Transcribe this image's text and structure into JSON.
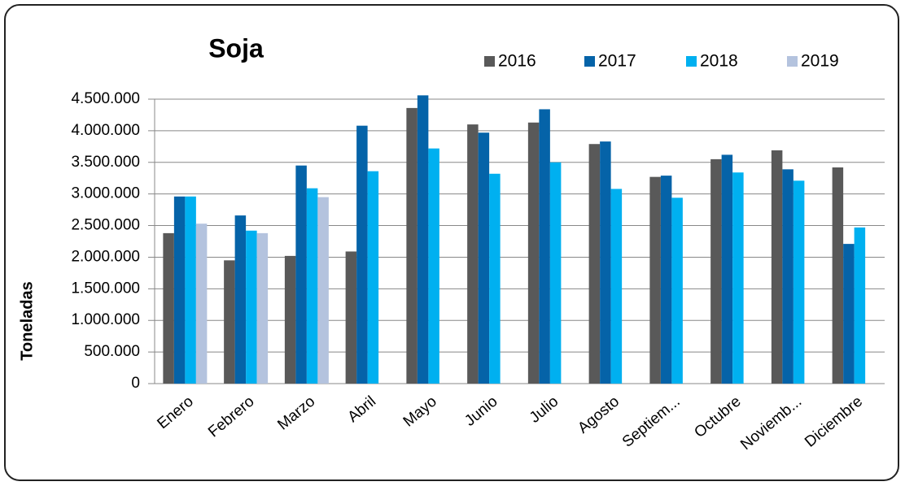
{
  "chart_data": {
    "type": "bar",
    "title": "Soja",
    "y_label": "Toneladas",
    "categories": [
      "Enero",
      "Febrero",
      "Marzo",
      "Abril",
      "Mayo",
      "Junio",
      "Julio",
      "Agosto",
      "Septiem...",
      "Octubre",
      "Noviemb...",
      "Diciembre"
    ],
    "series": [
      {
        "name": "2016",
        "color": "#595959",
        "values": [
          2380000,
          1950000,
          2020000,
          2090000,
          4360000,
          4100000,
          4130000,
          3790000,
          3270000,
          3550000,
          3690000,
          3420000
        ]
      },
      {
        "name": "2017",
        "color": "#0563a8",
        "values": [
          2960000,
          2660000,
          3450000,
          4080000,
          4560000,
          3970000,
          4340000,
          3830000,
          3290000,
          3620000,
          3390000,
          2210000
        ]
      },
      {
        "name": "2018",
        "color": "#00b0f0",
        "values": [
          2960000,
          2420000,
          3090000,
          3360000,
          3720000,
          3320000,
          3500000,
          3080000,
          2940000,
          3340000,
          3210000,
          2470000
        ]
      },
      {
        "name": "2019",
        "color": "#b4c3de",
        "values": [
          2530000,
          2380000,
          2950000,
          null,
          null,
          null,
          null,
          null,
          null,
          null,
          null,
          null
        ]
      }
    ],
    "ylim": [
      0,
      4500000
    ],
    "yticks": [
      0,
      {
        "value": 500000,
        "label": "500.000"
      },
      {
        "value": 1000000,
        "label": "1.000.000"
      },
      {
        "value": 1500000,
        "label": "1.500.000"
      },
      {
        "value": 2000000,
        "label": "2.000.000"
      },
      {
        "value": 2500000,
        "label": "2.500.000"
      },
      {
        "value": 3000000,
        "label": "3.000.000"
      },
      {
        "value": 3500000,
        "label": "3.500.000"
      },
      {
        "value": 4000000,
        "label": "4.000.000"
      },
      {
        "value": 4500000,
        "label": "4.500.000"
      }
    ],
    "grid": true
  }
}
